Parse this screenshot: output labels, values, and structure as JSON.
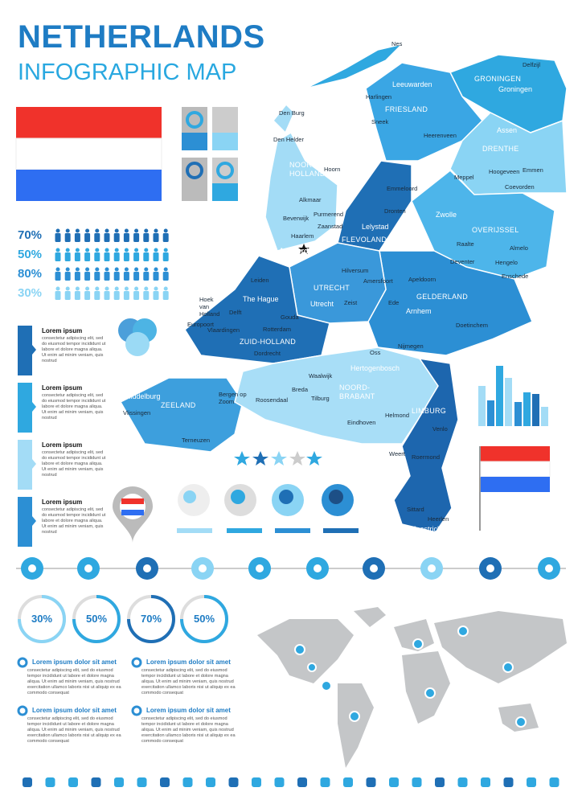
{
  "header": {
    "title": "NETHERLANDS",
    "subtitle": "INFOGRAPHIC MAP"
  },
  "people_rows": [
    "70%",
    "50%",
    "80%",
    "30%"
  ],
  "side_notes": [
    {
      "title": "Lorem ipsum",
      "text": "consectetur adipiscing elit, sed do eiusmod tempor incididunt ut labore et dolore magna aliqua. Ut enim ad minim veniam, quis nostrud"
    },
    {
      "title": "Lorem ipsum",
      "text": "consectetur adipiscing elit, sed do eiusmod tempor incididunt ut labore et dolore magna aliqua. Ut enim ad minim veniam, quis nostrud"
    },
    {
      "title": "Lorem ipsum",
      "text": "consectetur adipiscing elit, sed do eiusmod tempor incididunt ut labore et dolore magna aliqua. Ut enim ad minim veniam, quis nostrud"
    },
    {
      "title": "Lorem ipsum",
      "text": "consectetur adipiscing elit, sed do eiusmod tempor incididunt ut labore et dolore magna aliqua. Ut enim ad minim veniam, quis nostrud"
    }
  ],
  "circles": [
    "30%",
    "50%",
    "70%",
    "50%"
  ],
  "bottom_notes": [
    {
      "title": "Lorem ipsum dolor sit amet",
      "text": "consectetur adipiscing elit, sed do eiusmod tempor incididunt ut labore et dolore magna aliqua. Ut enim ad minim veniam, quis nostrud exercitation ullamco laboris nisi ut aliquip ex ea commodo consequat"
    },
    {
      "title": "Lorem ipsum dolor sit amet",
      "text": "consectetur adipiscing elit, sed do eiusmod tempor incididunt ut labore et dolore magna aliqua. Ut enim ad minim veniam, quis nostrud exercitation ullamco laboris nisi ut aliquip ex ea commodo consequat"
    },
    {
      "title": "Lorem ipsum dolor sit amet",
      "text": "consectetur adipiscing elit, sed do eiusmod tempor incididunt ut labore et dolore magna aliqua. Ut enim ad minim veniam, quis nostrud exercitation ullamco laboris nisi ut aliquip ex ea commodo consequat"
    },
    {
      "title": "Lorem ipsum dolor sit amet",
      "text": "consectetur adipiscing elit, sed do eiusmod tempor incididunt ut labore et dolore magna aliqua. Ut enim ad minim veniam, quis nostrud exercitation ullamco laboris nisi ut aliquip ex ea commodo consequat"
    }
  ],
  "provinces": [
    "GRONINGEN",
    "FRIESLAND",
    "DRENTHE",
    "NOORD-HOLLAND",
    "FLEVOLAND",
    "OVERIJSSEL",
    "UTRECHT",
    "GELDERLAND",
    "ZUID-HOLLAND",
    "ZEELAND",
    "NOORD-BRABANT",
    "LIMBURG"
  ],
  "cities": [
    "Nes",
    "Delfzijl",
    "Leeuwarden",
    "Groningen",
    "Harlingen",
    "Sneek",
    "Heerenveen",
    "Assen",
    "Den Burg",
    "Den Helder",
    "Emmeloord",
    "Hoogeveen",
    "Emmen",
    "Meppel",
    "Coevorden",
    "Hoorn",
    "Alkmaar",
    "Dronten",
    "Zwolle",
    "Lelystad",
    "Purmerend",
    "Beverwijk",
    "Zaanstad",
    "Raalte",
    "Almelo",
    "Haarlem",
    "Amsterdam",
    "Deventer",
    "Hengelo",
    "Enschede",
    "Hilversum",
    "Leiden",
    "Amersfoort",
    "Apeldoorn",
    "Hoek van Holland",
    "The Hague",
    "Delft",
    "Utrecht",
    "Zeist",
    "Ede",
    "Arnhem",
    "Europoort",
    "Gouda",
    "Vlaardingen",
    "Rotterdam",
    "Doetinchem",
    "Dordrecht",
    "Nijmegen",
    "Oss",
    "Waalwijk",
    "Hertogenbosch",
    "Middelburg",
    "Bergen op Zoom",
    "Breda",
    "Tilburg",
    "Vlissingen",
    "Roosendaal",
    "Helmond",
    "Eindhoven",
    "Terneuzen",
    "Venlo",
    "Weert",
    "Roermond",
    "Sittard",
    "Heerlen",
    "Maastricht"
  ]
}
